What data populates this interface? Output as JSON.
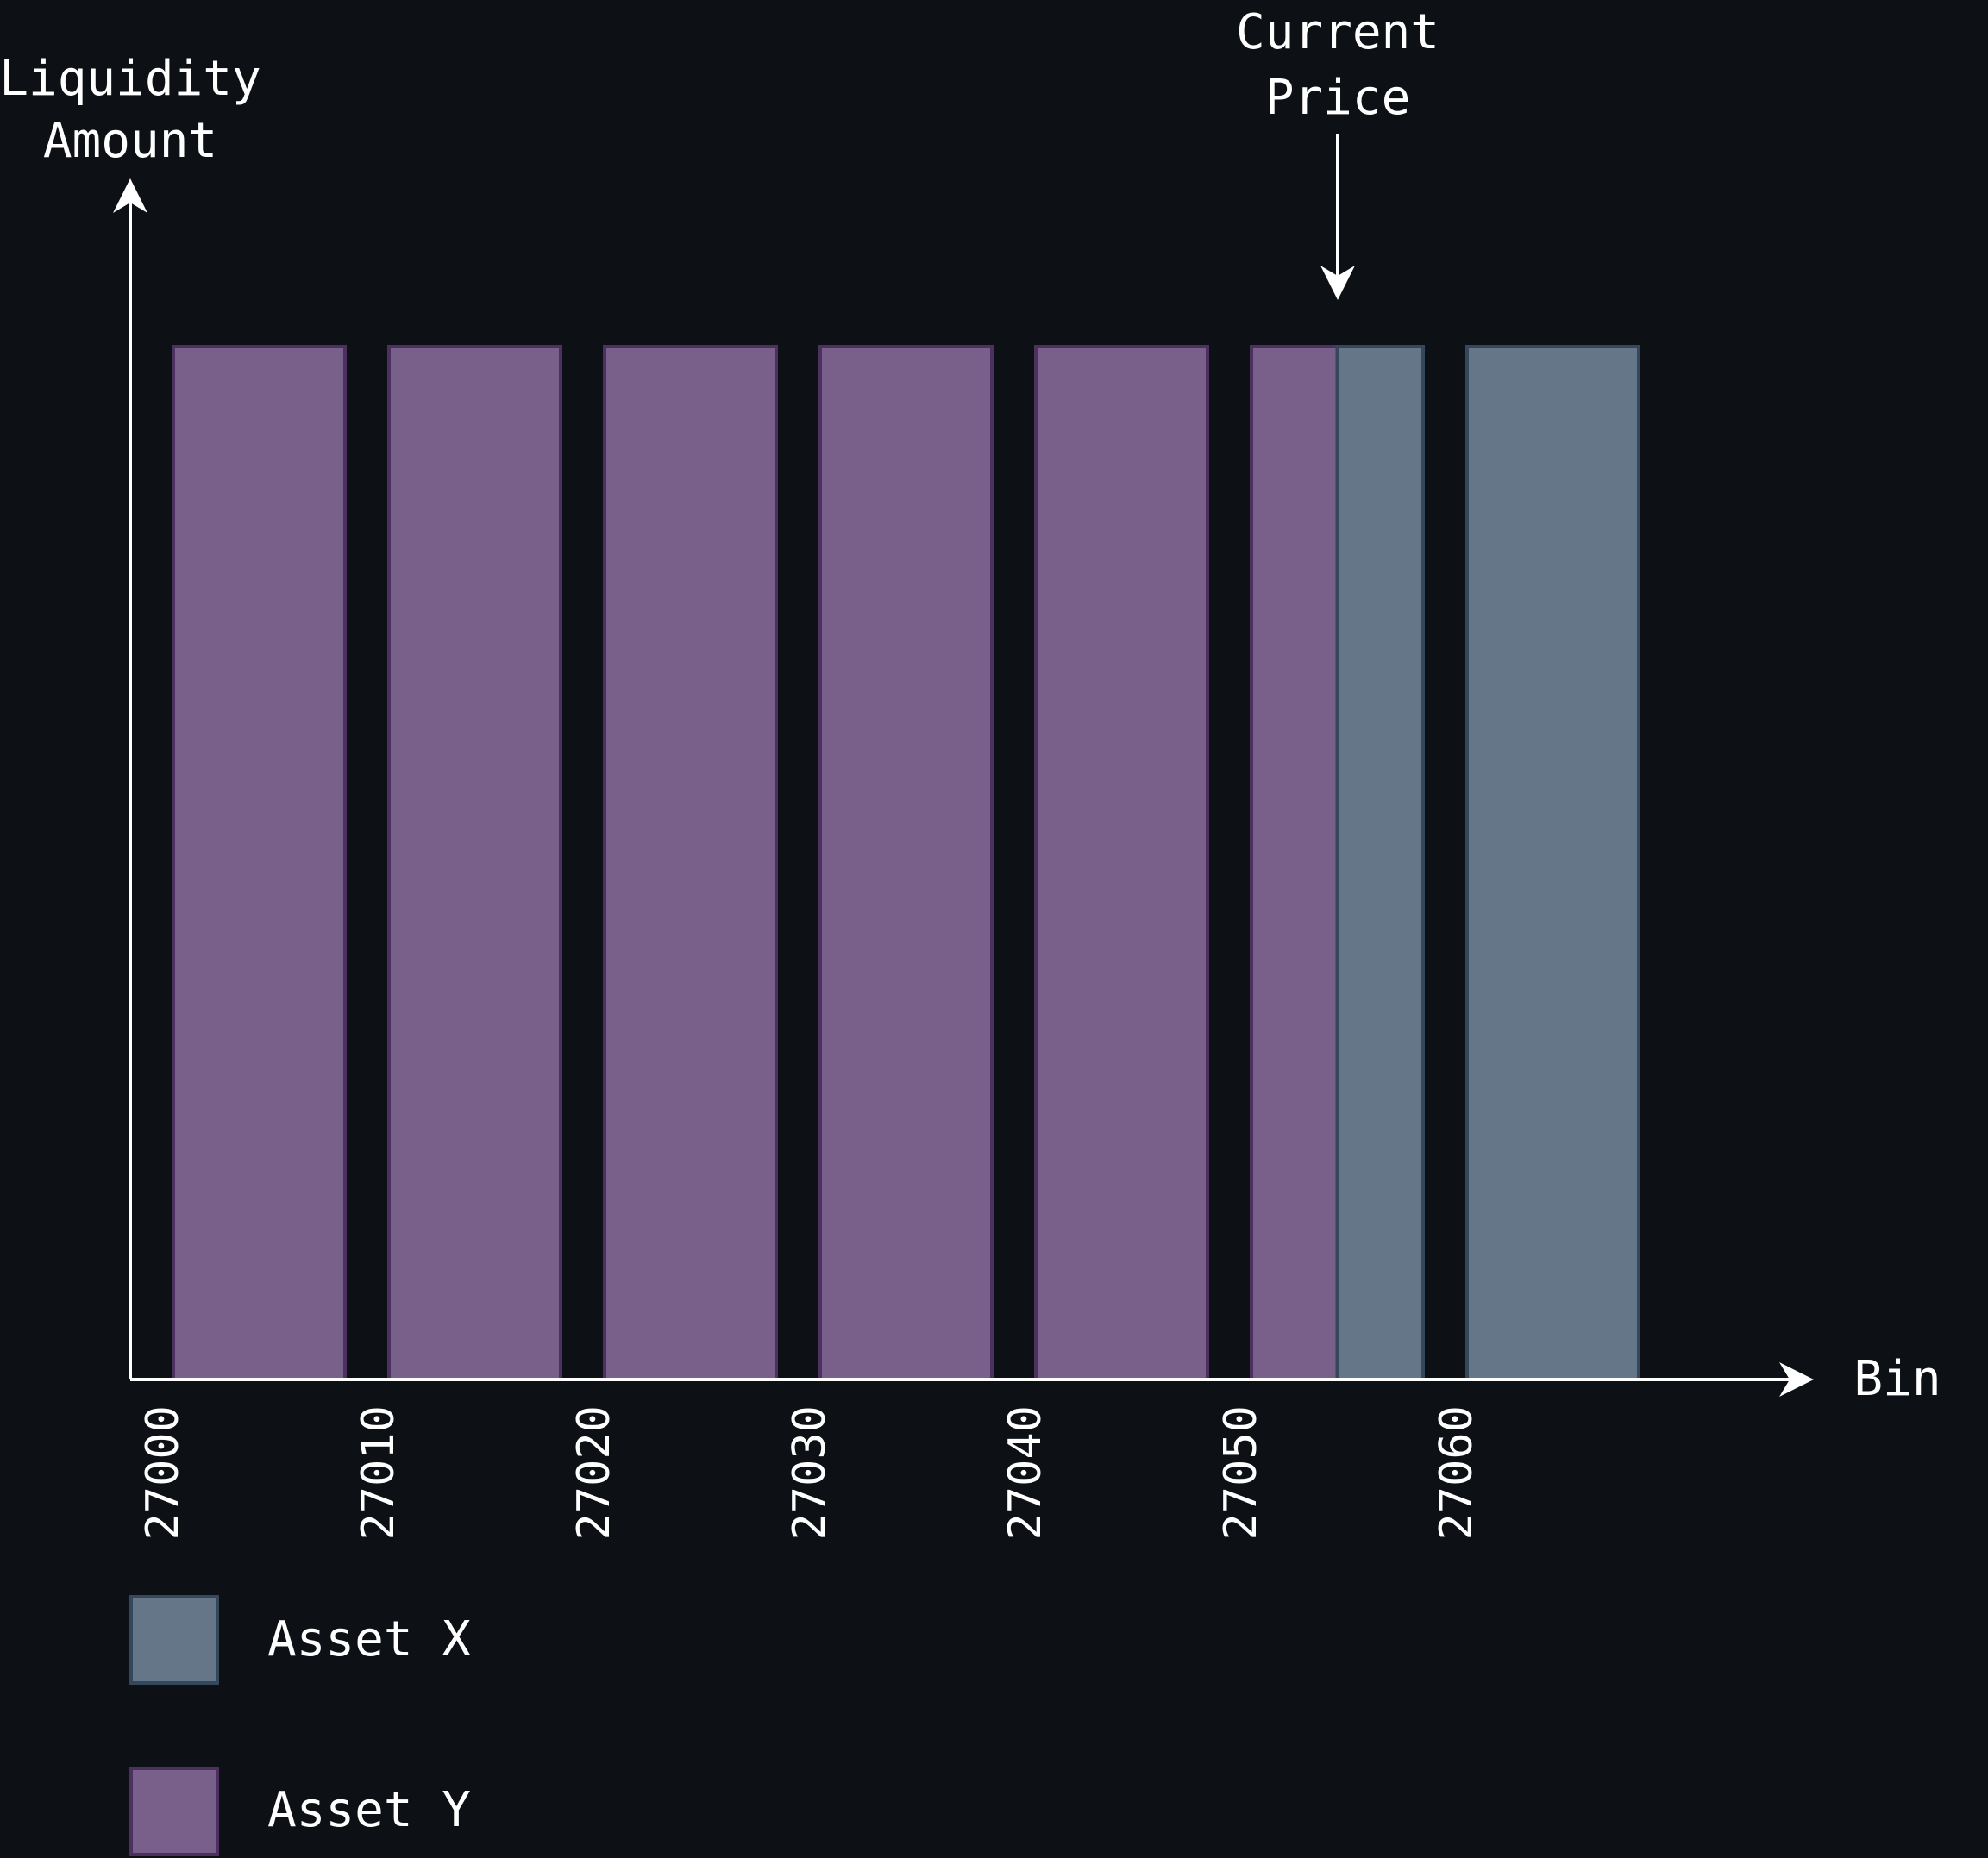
{
  "chart_data": {
    "type": "bar",
    "xlabel": "Bin",
    "ylabel": [
      "Liquidity",
      "Amount"
    ],
    "annotation": [
      "Current",
      "Price"
    ],
    "current_price_bin": 27055,
    "x_ticks": [
      "27000",
      "27010",
      "27020",
      "27030",
      "27040",
      "27050",
      "27060"
    ],
    "x_range": [
      27000,
      27070
    ],
    "ylim": [
      0,
      1
    ],
    "bin_width": 10,
    "bins": [
      {
        "bin": 27000,
        "segments": [
          {
            "series": "Asset Y",
            "from": 0,
            "to": 10,
            "value": 1
          }
        ]
      },
      {
        "bin": 27010,
        "segments": [
          {
            "series": "Asset Y",
            "from": 0,
            "to": 10,
            "value": 1
          }
        ]
      },
      {
        "bin": 27020,
        "segments": [
          {
            "series": "Asset Y",
            "from": 0,
            "to": 10,
            "value": 1
          }
        ]
      },
      {
        "bin": 27030,
        "segments": [
          {
            "series": "Asset Y",
            "from": 0,
            "to": 10,
            "value": 1
          }
        ]
      },
      {
        "bin": 27040,
        "segments": [
          {
            "series": "Asset Y",
            "from": 0,
            "to": 10,
            "value": 1
          }
        ]
      },
      {
        "bin": 27050,
        "segments": [
          {
            "series": "Asset Y",
            "from": 0,
            "to": 5,
            "value": 1
          },
          {
            "series": "Asset X",
            "from": 5,
            "to": 10,
            "value": 1
          }
        ]
      },
      {
        "bin": 27060,
        "segments": [
          {
            "series": "Asset X",
            "from": 0,
            "to": 10,
            "value": 1
          }
        ]
      }
    ],
    "legend": [
      {
        "name": "Asset X",
        "color": "#647688",
        "stroke": "#35475a"
      },
      {
        "name": "Asset Y",
        "color": "#78608b",
        "stroke": "#4b3060"
      }
    ],
    "legend_position": "bottom-left"
  },
  "colors": {
    "background": "#0d1015",
    "axis": "#ffffff",
    "asset_x": "#647688",
    "asset_y": "#78608b"
  }
}
